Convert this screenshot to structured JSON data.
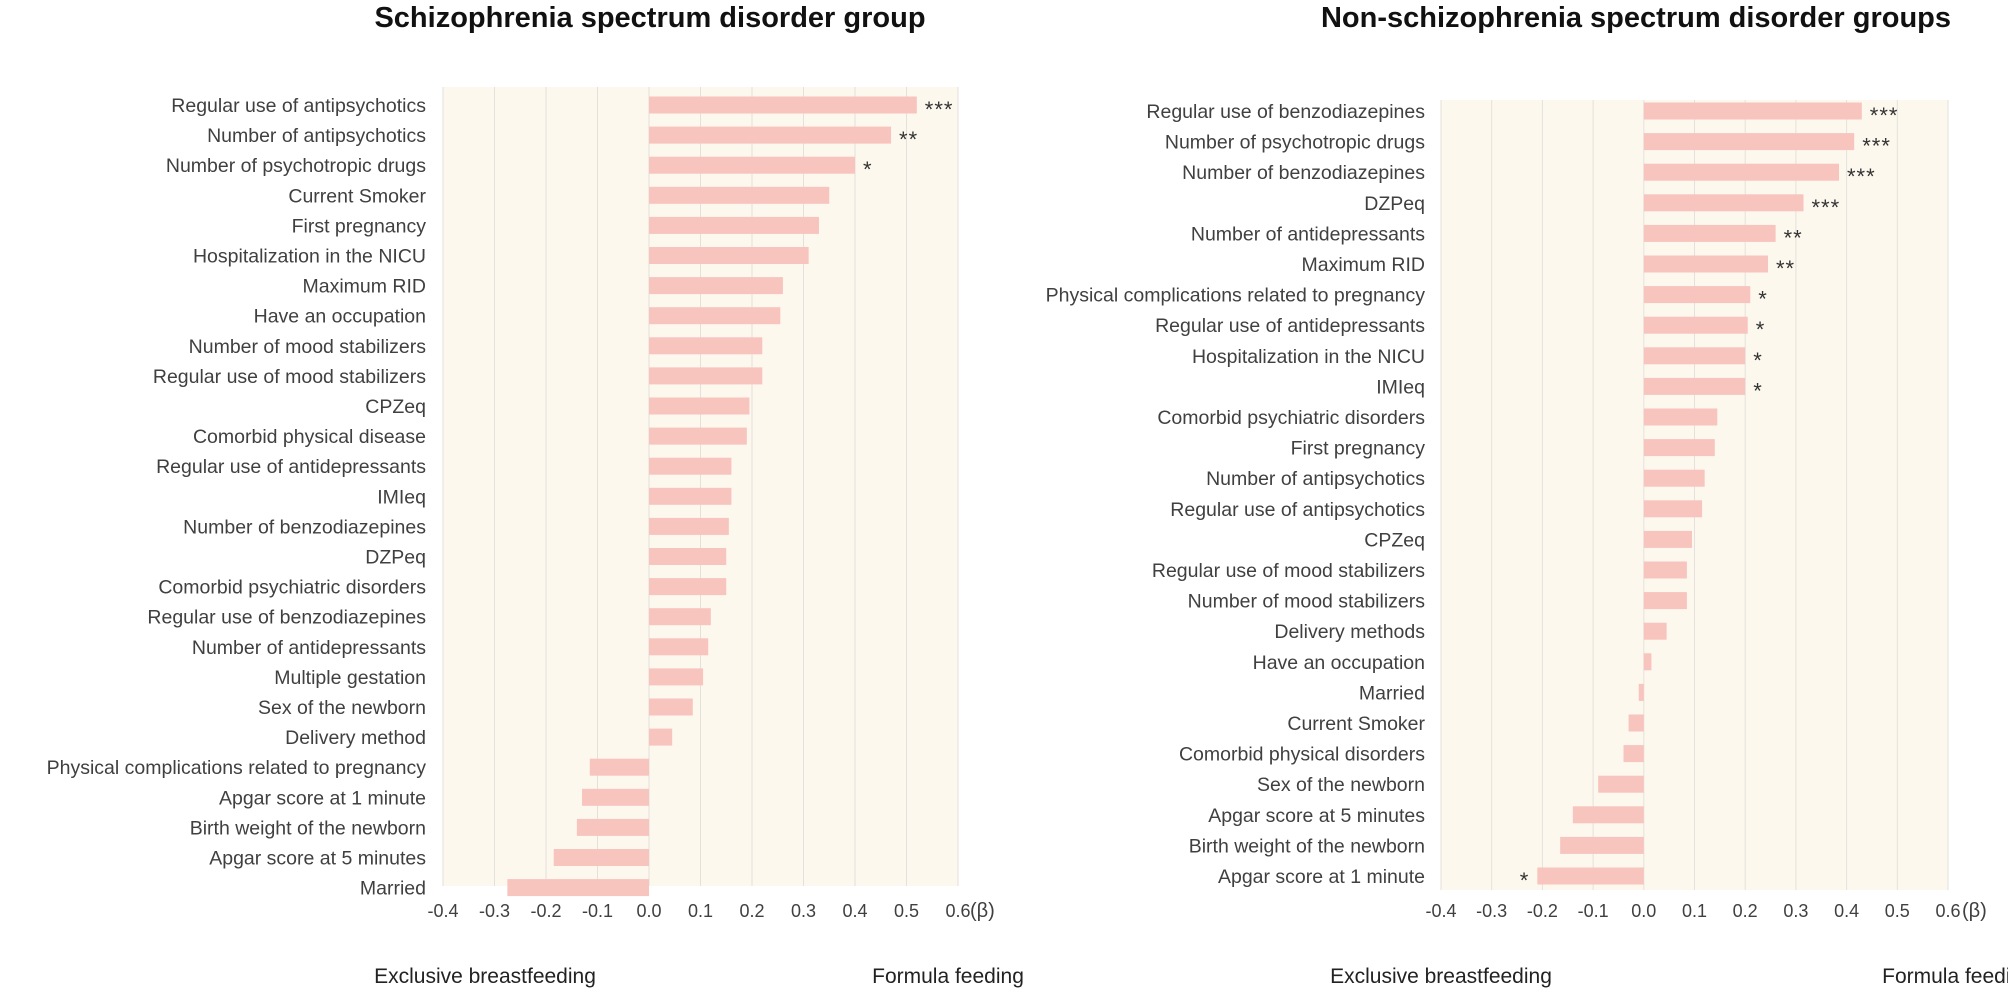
{
  "chart_data": [
    {
      "type": "bar",
      "orientation": "horizontal",
      "title": "Schizophrenia spectrum disorder group",
      "xlabel_unit": "(β)",
      "xlim": [
        -0.4,
        0.6
      ],
      "xticks": [
        "-0.4",
        "-0.3",
        "-0.2",
        "-0.1",
        "0.0",
        "0.1",
        "0.2",
        "0.3",
        "0.4",
        "0.5",
        "0.6"
      ],
      "grid": "vertical",
      "bar_color": "#f8c4be",
      "plot_bg": "#fdf8ee",
      "direction_labels": {
        "left": "Exclusive breastfeeding",
        "right": "Formula feeding"
      },
      "categories": [
        "Regular use of antipsychotics",
        "Number of antipsychotics",
        "Number of psychotropic drugs",
        "Current Smoker",
        "First pregnancy",
        "Hospitalization in the NICU",
        "Maximum RID",
        "Have an occupation",
        "Number of mood stabilizers",
        "Regular use of mood stabilizers",
        "CPZeq",
        "Comorbid physical disease",
        "Regular use of antidepressants",
        "IMIeq",
        "Number of benzodiazepines",
        "DZPeq",
        "Comorbid psychiatric disorders",
        "Regular use of benzodiazepines",
        "Number of antidepressants",
        "Multiple gestation",
        "Sex of the newborn",
        "Delivery method",
        "Physical complications related to pregnancy",
        "Apgar score at 1 minute",
        "Birth weight of the newborn",
        "Apgar score at 5 minutes",
        "Married"
      ],
      "values": [
        0.52,
        0.47,
        0.4,
        0.35,
        0.33,
        0.31,
        0.26,
        0.255,
        0.22,
        0.22,
        0.195,
        0.19,
        0.16,
        0.16,
        0.155,
        0.15,
        0.15,
        0.12,
        0.115,
        0.105,
        0.085,
        0.045,
        -0.115,
        -0.13,
        -0.14,
        -0.185,
        -0.275
      ],
      "significance": [
        "***",
        "**",
        "*",
        "",
        "",
        "",
        "",
        "",
        "",
        "",
        "",
        "",
        "",
        "",
        "",
        "",
        "",
        "",
        "",
        "",
        "",
        "",
        "",
        "",
        "",
        "",
        ""
      ]
    },
    {
      "type": "bar",
      "orientation": "horizontal",
      "title": "Non-schizophrenia spectrum disorder groups",
      "xlabel_unit": "(β)",
      "xlim": [
        -0.4,
        0.6
      ],
      "xticks": [
        "-0.4",
        "-0.3",
        "-0.2",
        "-0.1",
        "0.0",
        "0.1",
        "0.2",
        "0.3",
        "0.4",
        "0.5",
        "0.6"
      ],
      "grid": "vertical",
      "bar_color": "#f8c4be",
      "plot_bg": "#fdf8ee",
      "direction_labels": {
        "left": "Exclusive breastfeeding",
        "right": "Formula feeding"
      },
      "categories": [
        "Regular use of benzodiazepines",
        "Number of psychotropic drugs",
        "Number of benzodiazepines",
        "DZPeq",
        "Number of antidepressants",
        "Maximum RID",
        "Physical complications related to pregnancy",
        "Regular use of antidepressants",
        "Hospitalization in the NICU",
        "IMIeq",
        "Comorbid psychiatric disorders",
        "First pregnancy",
        "Number of antipsychotics",
        "Regular use of antipsychotics",
        "CPZeq",
        "Regular use of mood stabilizers",
        "Number of mood stabilizers",
        "Delivery methods",
        "Have an occupation",
        "Married",
        "Current Smoker",
        "Comorbid physical disorders",
        "Sex of the newborn",
        "Apgar score at 5 minutes",
        "Birth weight of the newborn",
        "Apgar score at 1 minute"
      ],
      "values": [
        0.43,
        0.415,
        0.385,
        0.315,
        0.26,
        0.245,
        0.21,
        0.205,
        0.2,
        0.2,
        0.145,
        0.14,
        0.12,
        0.115,
        0.095,
        0.085,
        0.085,
        0.045,
        0.015,
        -0.01,
        -0.03,
        -0.04,
        -0.09,
        -0.14,
        -0.165,
        -0.21
      ],
      "significance": [
        "***",
        "***",
        "***",
        "***",
        "**",
        "**",
        "*",
        "*",
        "*",
        "*",
        "",
        "",
        "",
        "",
        "",
        "",
        "",
        "",
        "",
        "",
        "",
        "",
        "",
        "",
        "",
        "*"
      ]
    }
  ]
}
